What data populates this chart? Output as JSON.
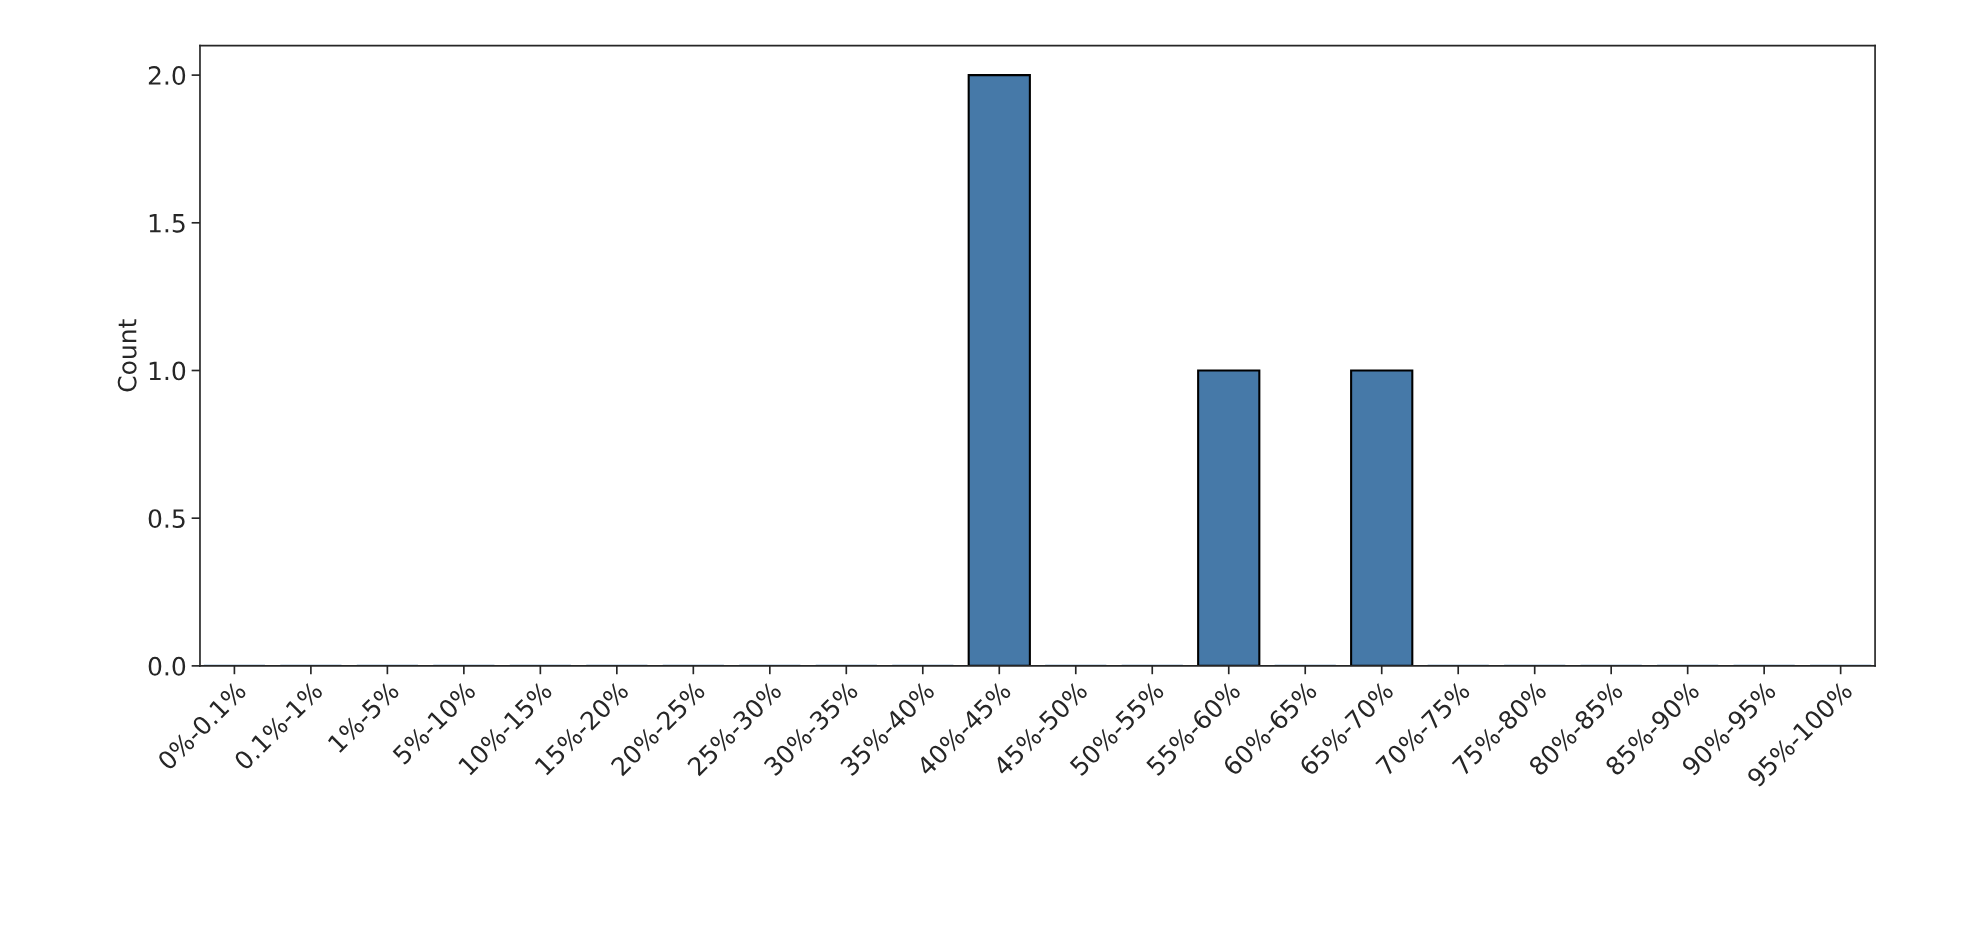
{
  "chart_data": {
    "type": "bar",
    "ylabel": "Count",
    "categories": [
      "0%-0.1%",
      "0.1%-1%",
      "1%-5%",
      "5%-10%",
      "10%-15%",
      "15%-20%",
      "20%-25%",
      "25%-30%",
      "30%-35%",
      "35%-40%",
      "40%-45%",
      "45%-50%",
      "50%-55%",
      "55%-60%",
      "60%-65%",
      "65%-70%",
      "70%-75%",
      "75%-80%",
      "80%-85%",
      "85%-90%",
      "90%-95%",
      "95%-100%"
    ],
    "values": [
      0,
      0,
      0,
      0,
      0,
      0,
      0,
      0,
      0,
      0,
      2,
      0,
      0,
      1,
      0,
      1,
      0,
      0,
      0,
      0,
      0,
      0
    ],
    "color": "#4679a8",
    "ylim": [
      0,
      2.1
    ],
    "yticks": [
      {
        "value": 0,
        "label": "0.0"
      },
      0.5,
      {
        "value": 1,
        "label": "1.0"
      },
      1.5,
      {
        "value": 2,
        "label": "2.0"
      }
    ],
    "grid": false
  }
}
